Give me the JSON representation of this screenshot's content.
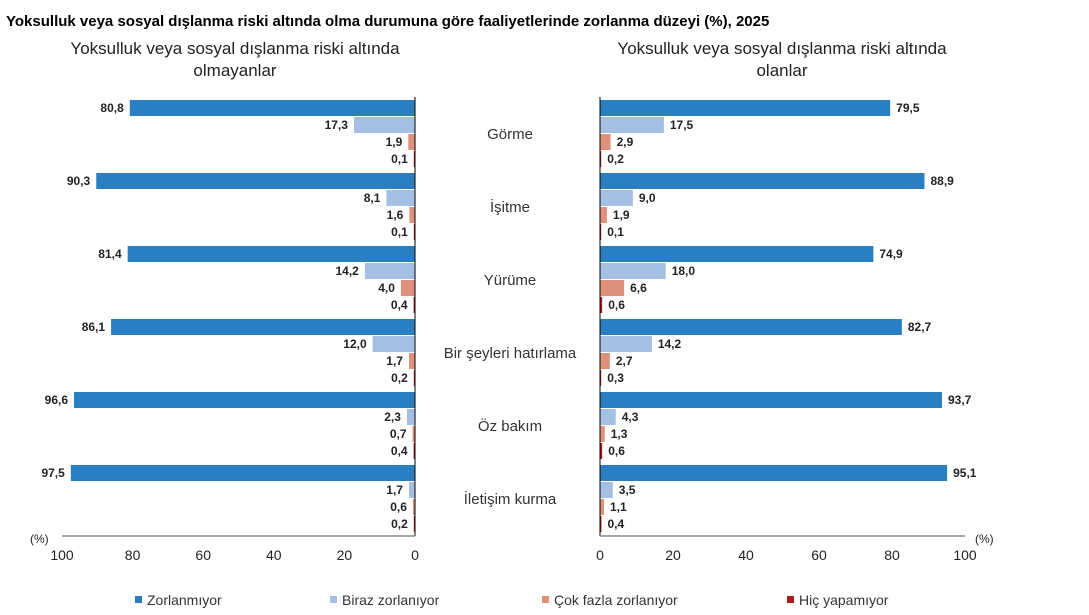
{
  "chart_data": {
    "type": "bar",
    "orientation": "horizontal",
    "title": "Yoksulluk veya sosyal dışlanma riski altında olma durumuna göre faaliyetlerinde zorlanma düzeyi (%), 2025",
    "unit_label": "(%)",
    "categories": [
      "Görme",
      "İşitme",
      "Yürüme",
      "Bir şeyleri hatırlama",
      "Öz bakım",
      "İletişim kurma"
    ],
    "series_names": [
      "Zorlanmıyor",
      "Biraz zorlanıyor",
      "Çok fazla zorlanıyor",
      "Hiç yapamıyor"
    ],
    "colors": [
      "#2a7fc3",
      "#a3bfe4",
      "#e0917b",
      "#b01c1c"
    ],
    "xlim": [
      0,
      100
    ],
    "ticks": [
      0,
      20,
      40,
      60,
      80,
      100
    ],
    "legend_position": "bottom",
    "panels": [
      {
        "subtitle_line1": "Yoksulluk veya sosyal dışlanma riski altında",
        "subtitle_line2": "olmayanlar",
        "direction": "reversed",
        "series": [
          {
            "name": "Zorlanmıyor",
            "values": [
              80.8,
              90.3,
              81.4,
              86.1,
              96.6,
              97.5
            ],
            "labels": [
              "80,8",
              "90,3",
              "81,4",
              "86,1",
              "96,6",
              "97,5"
            ]
          },
          {
            "name": "Biraz zorlanıyor",
            "values": [
              17.3,
              8.1,
              14.2,
              12.0,
              2.3,
              1.7
            ],
            "labels": [
              "17,3",
              "8,1",
              "14,2",
              "12,0",
              "2,3",
              "1,7"
            ]
          },
          {
            "name": "Çok fazla zorlanıyor",
            "values": [
              1.9,
              1.6,
              4.0,
              1.7,
              0.7,
              0.6
            ],
            "labels": [
              "1,9",
              "1,6",
              "4,0",
              "1,7",
              "0,7",
              "0,6"
            ]
          },
          {
            "name": "Hiç yapamıyor",
            "values": [
              0.1,
              0.1,
              0.4,
              0.2,
              0.4,
              0.2
            ],
            "labels": [
              "0,1",
              "0,1",
              "0,4",
              "0,2",
              "0,4",
              "0,2"
            ]
          }
        ]
      },
      {
        "subtitle_line1": "Yoksulluk veya sosyal dışlanma riski altında",
        "subtitle_line2": "olanlar",
        "direction": "normal",
        "series": [
          {
            "name": "Zorlanmıyor",
            "values": [
              79.5,
              88.9,
              74.9,
              82.7,
              93.7,
              95.1
            ],
            "labels": [
              "79,5",
              "88,9",
              "74,9",
              "82,7",
              "93,7",
              "95,1"
            ]
          },
          {
            "name": "Biraz zorlanıyor",
            "values": [
              17.5,
              9.0,
              18.0,
              14.2,
              4.3,
              3.5
            ],
            "labels": [
              "17,5",
              "9,0",
              "18,0",
              "14,2",
              "4,3",
              "3,5"
            ]
          },
          {
            "name": "Çok fazla zorlanıyor",
            "values": [
              2.9,
              1.9,
              6.6,
              2.7,
              1.3,
              1.1
            ],
            "labels": [
              "2,9",
              "1,9",
              "6,6",
              "2,7",
              "1,3",
              "1,1"
            ]
          },
          {
            "name": "Hiç yapamıyor",
            "values": [
              0.2,
              0.1,
              0.6,
              0.3,
              0.6,
              0.4
            ],
            "labels": [
              "0,2",
              "0,1",
              "0,6",
              "0,3",
              "0,6",
              "0,4"
            ]
          }
        ]
      }
    ]
  }
}
